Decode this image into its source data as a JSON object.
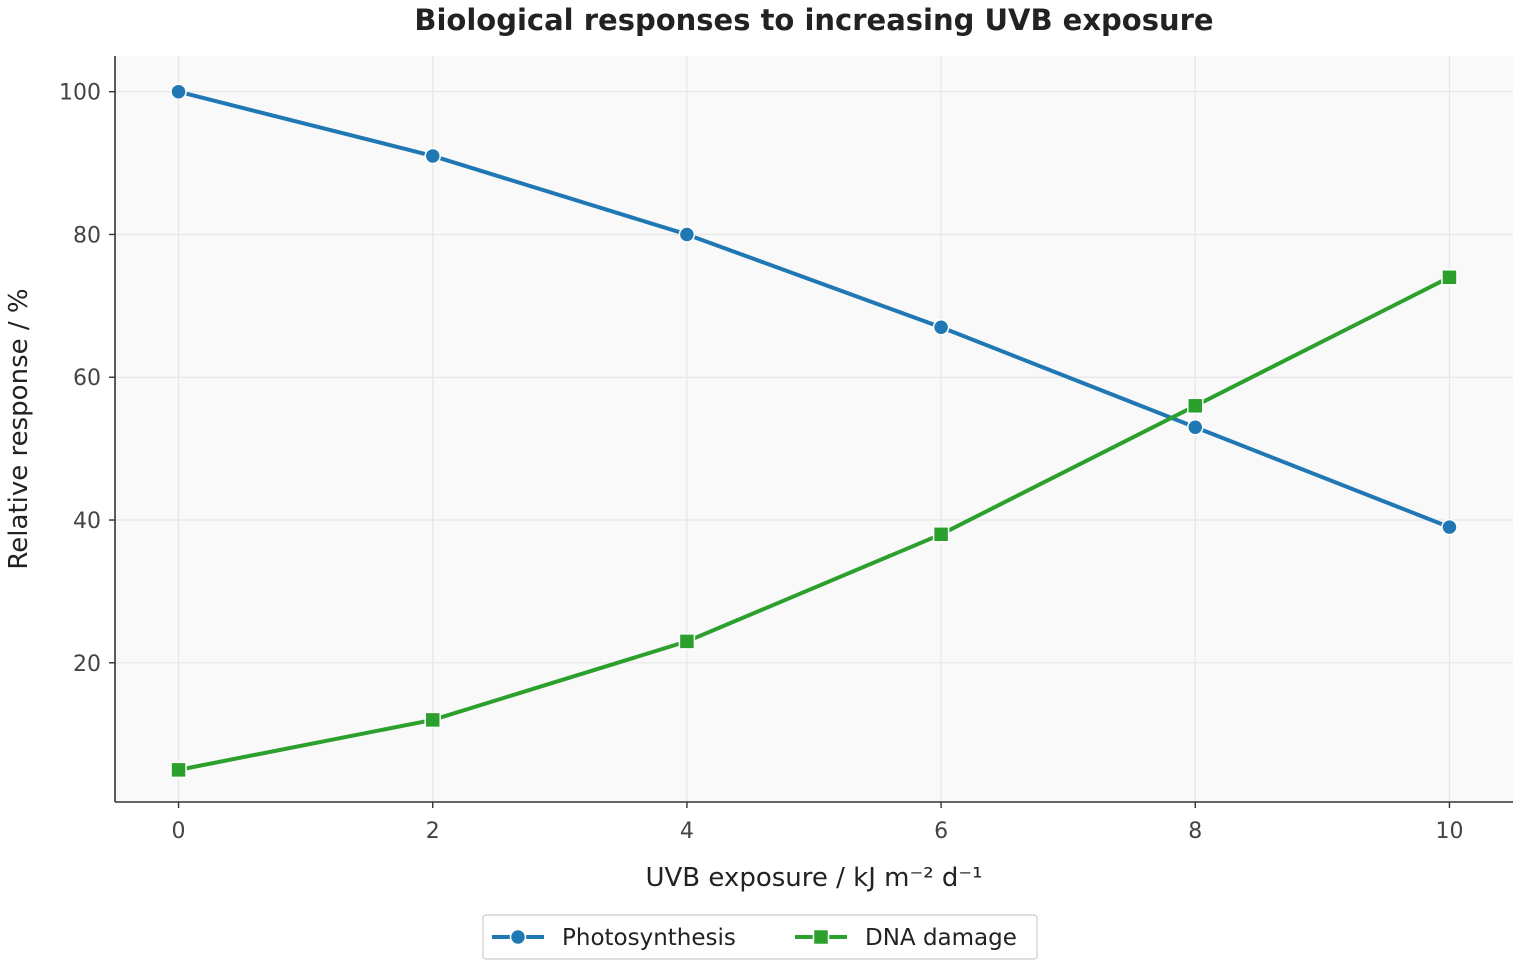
{
  "chart_data": {
    "type": "line",
    "title": "Biological responses to increasing UVB exposure",
    "xlabel": "UVB exposure / kJ m⁻² d⁻¹",
    "ylabel": "Relative response / %",
    "x": [
      0,
      2,
      4,
      6,
      8,
      10
    ],
    "xlim": [
      -0.5,
      10.5
    ],
    "ylim": [
      0.5,
      105
    ],
    "x_ticks": [
      "0",
      "2",
      "4",
      "6",
      "8",
      "10"
    ],
    "y_ticks": [
      "20",
      "40",
      "60",
      "80",
      "100"
    ],
    "grid": true,
    "legend_position": "bottom-center",
    "series": [
      {
        "name": "Photosynthesis",
        "values": [
          100,
          91,
          80,
          67,
          53,
          39
        ],
        "color": "#1f77b4",
        "marker": "circle"
      },
      {
        "name": "DNA damage",
        "values": [
          5,
          12,
          23,
          38,
          56,
          74
        ],
        "color": "#2ca02c",
        "marker": "square"
      }
    ],
    "background_color": "#f9f9f9",
    "grid_color": "#e6e6e6"
  }
}
